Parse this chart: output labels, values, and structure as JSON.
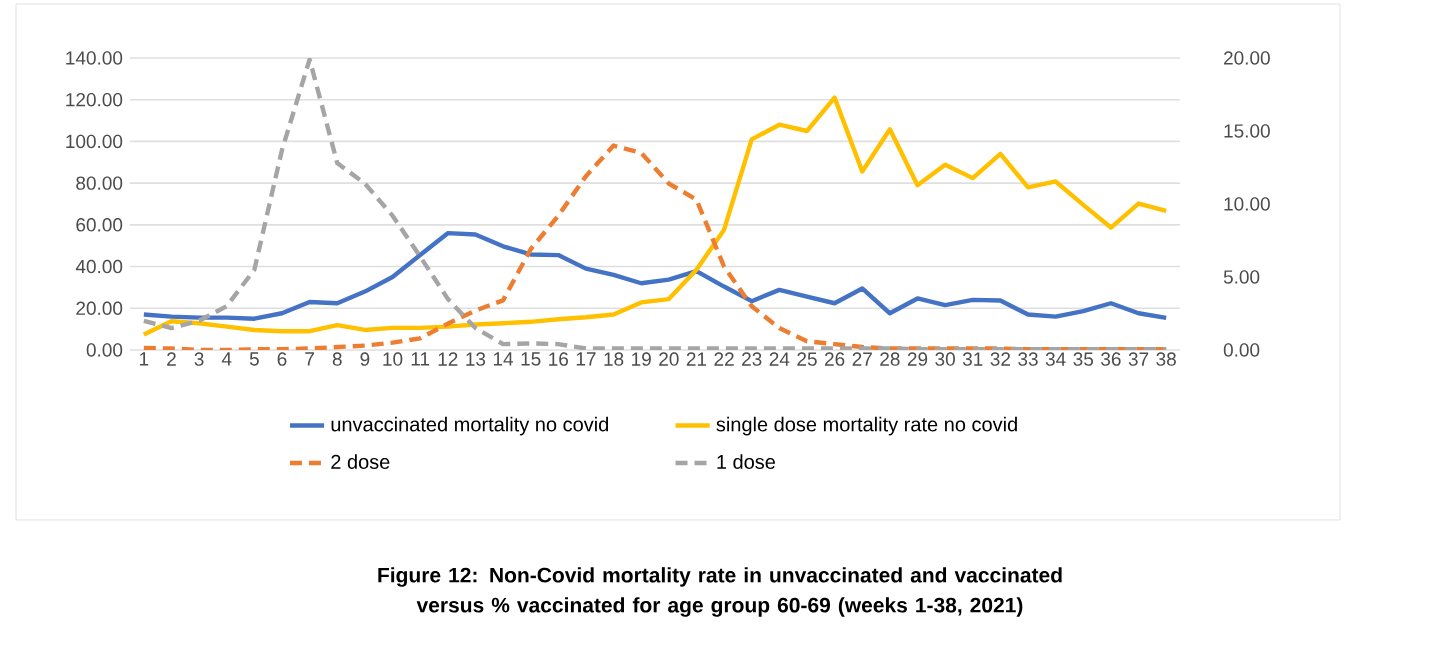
{
  "chart_data": {
    "type": "line",
    "categories": [
      "1",
      "2",
      "3",
      "4",
      "5",
      "6",
      "7",
      "8",
      "9",
      "10",
      "11",
      "12",
      "13",
      "14",
      "15",
      "16",
      "17",
      "18",
      "19",
      "20",
      "21",
      "22",
      "23",
      "24",
      "25",
      "26",
      "27",
      "28",
      "29",
      "30",
      "31",
      "32",
      "33",
      "34",
      "35",
      "36",
      "37",
      "38"
    ],
    "series": [
      {
        "name": "unvaccinated mortality no covid",
        "color": "#4472c4",
        "line_style": "solid",
        "values": [
          17,
          16,
          15.5,
          15.5,
          15,
          17.6,
          23,
          22.4,
          28,
          35,
          45.5,
          56,
          55.4,
          49.7,
          45.8,
          45.5,
          39,
          36,
          32,
          33.7,
          37.8,
          30.4,
          23.4,
          28.8,
          25.6,
          22.4,
          29.5,
          17.6,
          24.7,
          21.5,
          24,
          23.7,
          17,
          16,
          18.6,
          22.4,
          17.6,
          15.4
        ]
      },
      {
        "name": "single dose mortality rate no covid",
        "color": "#ffc000",
        "line_style": "solid",
        "values": [
          7.4,
          13.8,
          12.8,
          11.2,
          9.6,
          9,
          9,
          11.9,
          9.6,
          10.6,
          10.6,
          11.2,
          12.2,
          12.8,
          13.5,
          14.7,
          15.7,
          17,
          22.8,
          24.4,
          38.5,
          57.7,
          101,
          108,
          105,
          121,
          85.6,
          105.8,
          79,
          88.8,
          82.4,
          94,
          78,
          80.8,
          69.6,
          58.7,
          70.2,
          66.7
        ]
      },
      {
        "name": "2 dose",
        "color": "#ed7d31",
        "line_style": "dashed",
        "axis": "y2",
        "values": [
          0.14,
          0.1,
          0,
          0,
          0.05,
          0.05,
          0.1,
          0.2,
          0.3,
          0.5,
          0.8,
          1.8,
          2.7,
          3.4,
          6.9,
          9.2,
          11.9,
          14,
          13.5,
          11.4,
          10.3,
          5.7,
          3,
          1.5,
          0.6,
          0.4,
          0.2,
          0.1,
          0.1,
          0.1,
          0.1,
          0.1,
          0.05,
          0.05,
          0.05,
          0.05,
          0.05,
          0.05
        ]
      },
      {
        "name": "1 dose",
        "color": "#a5a5a5",
        "line_style": "dashed",
        "axis": "y2",
        "values": [
          2,
          1.5,
          2,
          3,
          5.5,
          13.7,
          19.9,
          12.8,
          11.4,
          9.2,
          6.4,
          3.5,
          1.5,
          0.4,
          0.45,
          0.4,
          0.1,
          0.1,
          0.1,
          0.1,
          0.1,
          0.1,
          0.1,
          0.1,
          0.1,
          0.1,
          0.1,
          0.1,
          0.05,
          0.05,
          0.05,
          0.05,
          0.05,
          0.05,
          0.05,
          0.05,
          0.05,
          0.05
        ]
      }
    ],
    "ylim": [
      0,
      140
    ],
    "yticks": [
      {
        "value": 0,
        "label": "0.00"
      },
      {
        "value": 20,
        "label": "20.00"
      },
      {
        "value": 40,
        "label": "40.00"
      },
      {
        "value": 60,
        "label": "60.00"
      },
      {
        "value": 80,
        "label": "80.00"
      },
      {
        "value": 100,
        "label": "100.00"
      },
      {
        "value": 120,
        "label": "120.00"
      },
      {
        "value": 140,
        "label": "140.00"
      }
    ],
    "y2lim": [
      0,
      20
    ],
    "y2ticks": [
      {
        "value": 0,
        "label": "0.00"
      },
      {
        "value": 5,
        "label": "5.00"
      },
      {
        "value": 10,
        "label": "10.00"
      },
      {
        "value": 15,
        "label": "15.00"
      },
      {
        "value": 20,
        "label": "20.00"
      }
    ],
    "grid": "y",
    "legend": "bottom",
    "annotations": [
      "**Figure 12: Non-Covid mortality rate in unvaccinated and vaccinated versus % vaccinated for age group 60-69 (weeks 1-38, 2021)**"
    ]
  }
}
